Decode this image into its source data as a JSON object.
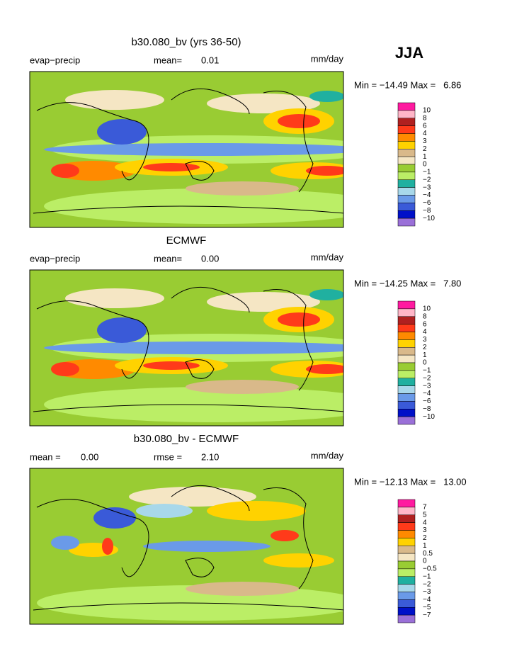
{
  "season": "JJA",
  "panels": [
    {
      "title": "b30.080_bv (yrs 36-50)",
      "field": "evap−precip",
      "stats": [
        {
          "label": "mean=",
          "value": "0.01"
        }
      ],
      "units": "mm/day",
      "range": "Min = −14.49 Max =   6.86",
      "levels": [
        "10",
        "8",
        "6",
        "4",
        "3",
        "2",
        "1",
        "0",
        "−1",
        "−2",
        "−3",
        "−4",
        "−6",
        "−8",
        "−10"
      ]
    },
    {
      "title": "ECMWF",
      "field": "evap−precip",
      "stats": [
        {
          "label": "mean=",
          "value": "0.00"
        }
      ],
      "units": "mm/day",
      "range": "Min = −14.25 Max =   7.80",
      "levels": [
        "10",
        "8",
        "6",
        "4",
        "3",
        "2",
        "1",
        "0",
        "−1",
        "−2",
        "−3",
        "−4",
        "−6",
        "−8",
        "−10"
      ]
    },
    {
      "title": "b30.080_bv - ECMWF",
      "field": null,
      "stats": [
        {
          "label": "mean =",
          "value": "0.00"
        },
        {
          "label": "rmse =",
          "value": "2.10"
        }
      ],
      "units": "mm/day",
      "range": "Min = −12.13 Max =   13.00",
      "levels": [
        "7",
        "5",
        "4",
        "3",
        "2",
        "1",
        "0.5",
        "0",
        "−0.5",
        "−1",
        "−2",
        "−3",
        "−4",
        "−5",
        "−7"
      ]
    }
  ]
}
